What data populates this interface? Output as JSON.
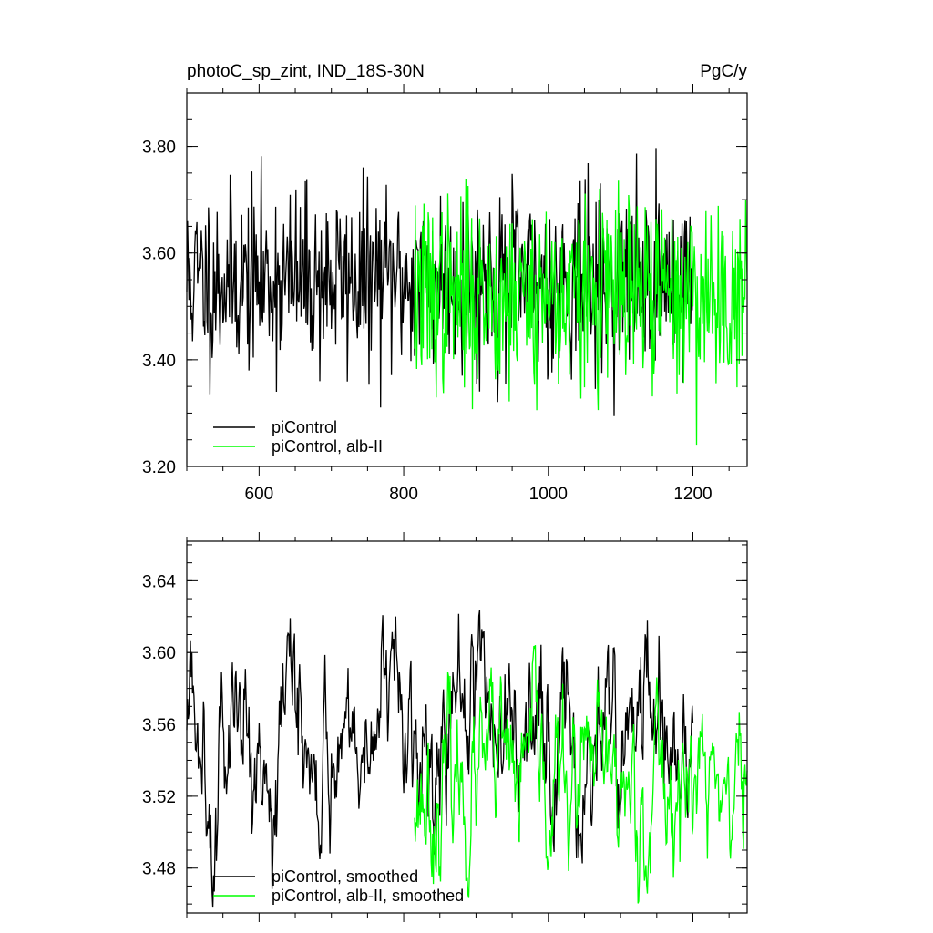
{
  "chart_data": [
    {
      "type": "line",
      "title_left": "photoC_sp_zint, IND_18S-30N",
      "title_right": "PgC/y",
      "xlim": [
        500,
        1275
      ],
      "ylim": [
        3.2,
        3.9
      ],
      "xticks": [
        600,
        800,
        1000,
        1200
      ],
      "xtick_labels": [
        "600",
        "800",
        "1000",
        "1200"
      ],
      "yticks": [
        3.2,
        3.4,
        3.6,
        3.8
      ],
      "ytick_labels": [
        "3.20",
        "3.40",
        "3.60",
        "3.80"
      ],
      "legend_position": "bottom-left",
      "series": [
        {
          "name": "piControl",
          "color": "#000000",
          "x_range": [
            500,
            1200
          ],
          "mean": 3.55,
          "amplitude": 0.085,
          "seed": 11
        },
        {
          "name": "piControl, alb-II",
          "color": "#00ff00",
          "x_range": [
            815,
            1275
          ],
          "mean": 3.52,
          "amplitude": 0.09,
          "seed": 37
        }
      ]
    },
    {
      "type": "line",
      "xlim": [
        500,
        1275
      ],
      "ylim": [
        3.455,
        3.662
      ],
      "xticks": [
        600,
        800,
        1000,
        1200
      ],
      "yticks": [
        3.48,
        3.52,
        3.56,
        3.6,
        3.64
      ],
      "ytick_labels": [
        "3.48",
        "3.52",
        "3.56",
        "3.60",
        "3.64"
      ],
      "legend_position": "bottom-left",
      "series": [
        {
          "name": "piControl, smoothed",
          "color": "#000000",
          "x_range": [
            500,
            1200
          ],
          "mean": 3.56,
          "amplitude": 0.03,
          "seed": 5
        },
        {
          "name": "piControl, alb-II, smoothed",
          "color": "#00ff00",
          "x_range": [
            815,
            1275
          ],
          "mean": 3.525,
          "amplitude": 0.028,
          "seed": 23
        }
      ]
    }
  ]
}
